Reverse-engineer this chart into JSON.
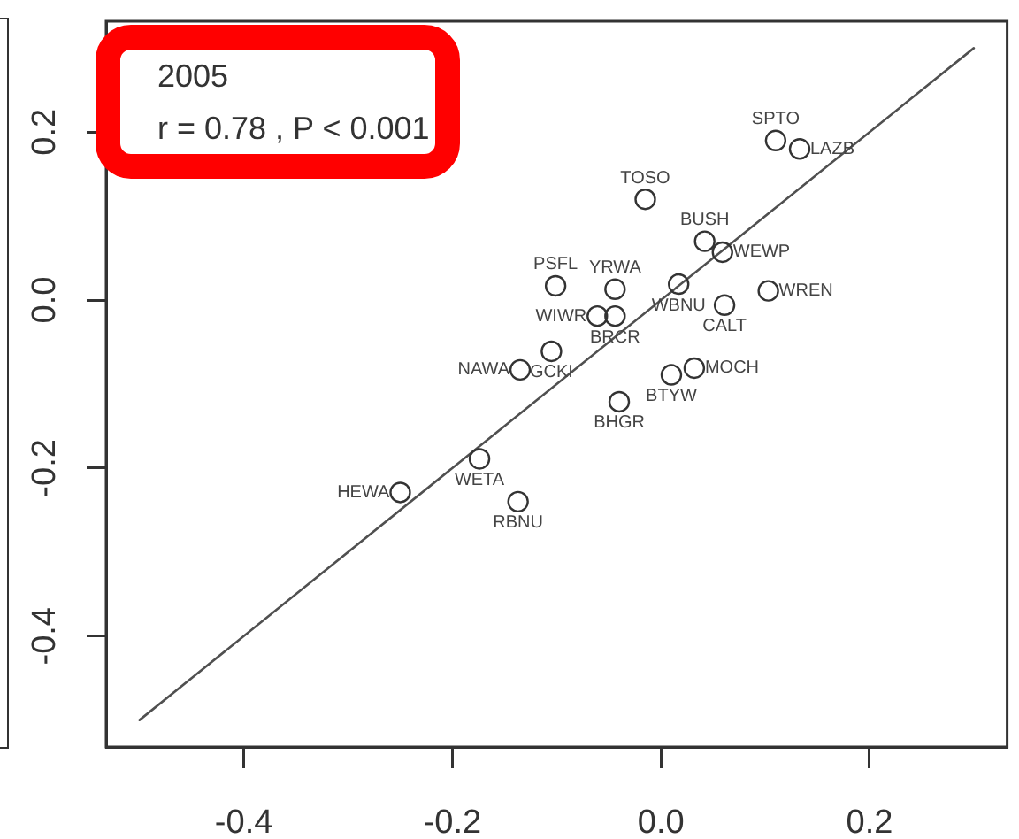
{
  "chart_data": {
    "type": "scatter",
    "xlim": [
      -0.532,
      0.332
    ],
    "ylim": [
      -0.532,
      0.332
    ],
    "xticks": [
      -0.4,
      -0.2,
      {
        "value": 0,
        "label": "0.0"
      },
      0.2
    ],
    "yticks": [
      -0.4,
      -0.2,
      {
        "value": 0,
        "label": "0.0"
      },
      0.2
    ],
    "grid": false,
    "legend": false,
    "series": [
      {
        "color": "#333333",
        "marker": "circle",
        "x": [
          0.11,
          0.133,
          -0.015,
          0.042,
          0.059,
          -0.101,
          -0.044,
          0.017,
          0.103,
          0.061,
          -0.061,
          -0.044,
          -0.105,
          -0.135,
          0.032,
          0.01,
          -0.04,
          -0.174,
          -0.25,
          -0.137
        ],
        "values": [
          0.19,
          0.18,
          0.12,
          0.07,
          0.057,
          0.017,
          0.013,
          0.019,
          0.011,
          -0.006,
          -0.019,
          -0.019,
          -0.061,
          -0.083,
          -0.081,
          -0.089,
          -0.121,
          -0.189,
          -0.229,
          -0.24
        ]
      },
      {
        "type": "line",
        "color": "#505050",
        "marker": "none",
        "x": [
          -0.5,
          0.3
        ],
        "values": [
          -0.5,
          0.3
        ]
      }
    ],
    "annotations": [
      "2005",
      "r = 0.78 , P < 0.001",
      {
        "text": "SPTO",
        "x": 0.11,
        "y": 0.19
      },
      {
        "text": "LAZB",
        "x": 0.133,
        "y": 0.18
      },
      {
        "text": "TOSO",
        "x": -0.015,
        "y": 0.12
      },
      {
        "text": "BUSH",
        "x": 0.042,
        "y": 0.07
      },
      {
        "text": "WEWP",
        "x": 0.059,
        "y": 0.057
      },
      {
        "text": "PSFL",
        "x": -0.101,
        "y": 0.017
      },
      {
        "text": "YRWA",
        "x": -0.044,
        "y": 0.013
      },
      {
        "text": "WBNU",
        "x": 0.017,
        "y": 0.019
      },
      {
        "text": "WREN",
        "x": 0.103,
        "y": 0.011
      },
      {
        "text": "CALT",
        "x": 0.061,
        "y": -0.006
      },
      {
        "text": "WIWR",
        "x": -0.061,
        "y": -0.019
      },
      {
        "text": "BRCR",
        "x": -0.044,
        "y": -0.019
      },
      {
        "text": "GCKI",
        "x": -0.105,
        "y": -0.061
      },
      {
        "text": "NAWA",
        "x": -0.135,
        "y": -0.083
      },
      {
        "text": "MOCH",
        "x": 0.032,
        "y": -0.081
      },
      {
        "text": "BTYW",
        "x": 0.01,
        "y": -0.089
      },
      {
        "text": "BHGR",
        "x": -0.04,
        "y": -0.121
      },
      {
        "text": "WETA",
        "x": -0.174,
        "y": -0.189
      },
      {
        "text": "HEWA",
        "x": -0.25,
        "y": -0.229
      },
      {
        "text": "RBNU",
        "x": -0.137,
        "y": -0.24
      }
    ]
  }
}
